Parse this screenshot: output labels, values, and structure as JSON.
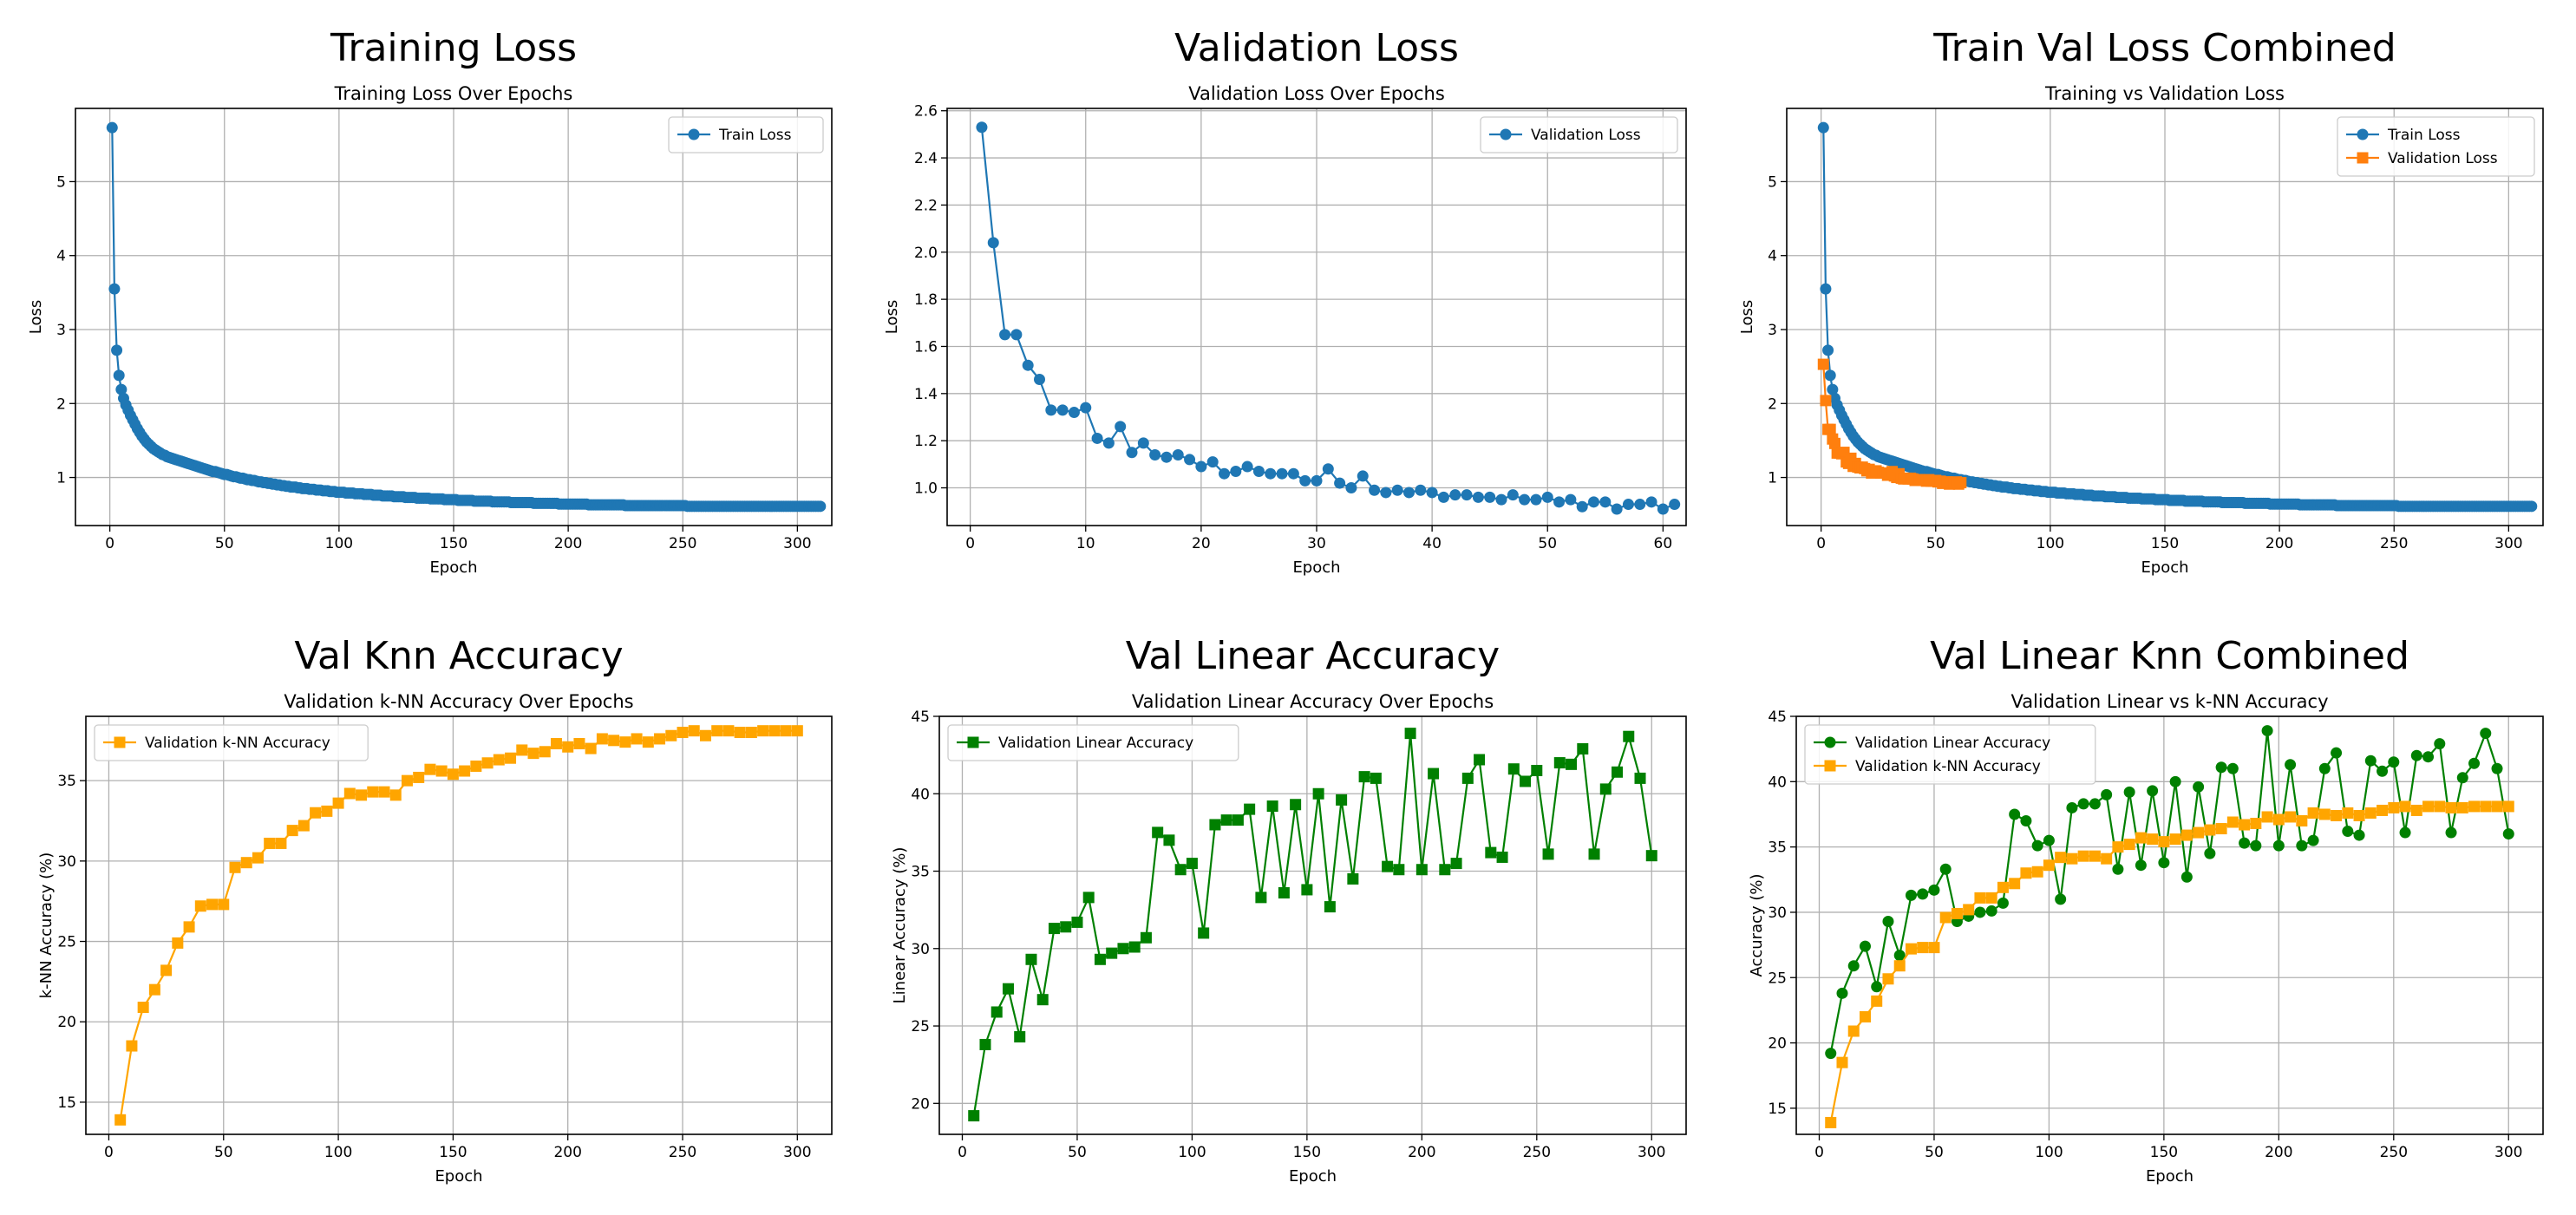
{
  "colors": {
    "train": "#1f77b4",
    "validation": "#ff7f0e",
    "knn": "#ffa500",
    "linear": "#008000",
    "grid": "#b0b0b0",
    "legend_border": "#cccccc"
  },
  "chart_data": [
    {
      "type": "line",
      "suptitle": "Training Loss",
      "title": "Training Loss Over Epochs",
      "xlabel": "Epoch",
      "ylabel": "Loss",
      "xlim": [
        -15,
        315
      ],
      "ylim": [
        0.35,
        5.99
      ],
      "xticks": [
        0,
        50,
        100,
        150,
        200,
        250,
        300
      ],
      "yticks": [
        1,
        2,
        3,
        4,
        5
      ],
      "grid": true,
      "legend": "upper right",
      "series": [
        {
          "name": "Train Loss",
          "marker": "circle",
          "color_key": "train",
          "x_start": 1,
          "x_step": 1,
          "values": [
            5.73,
            3.55,
            2.72,
            2.38,
            2.19,
            2.07,
            1.98,
            1.91,
            1.84,
            1.78,
            1.72,
            1.66,
            1.61,
            1.56,
            1.52,
            1.48,
            1.45,
            1.42,
            1.39,
            1.37,
            1.35,
            1.33,
            1.31,
            1.3,
            1.28,
            1.27,
            1.26,
            1.25,
            1.24,
            1.23,
            1.22,
            1.21,
            1.2,
            1.19,
            1.18,
            1.17,
            1.16,
            1.15,
            1.14,
            1.13,
            1.12,
            1.11,
            1.1,
            1.09,
            1.08,
            1.08,
            1.07,
            1.06,
            1.05,
            1.04,
            1.04,
            1.03,
            1.02,
            1.01,
            1.01,
            1.0,
            0.99,
            0.99,
            0.98,
            0.97,
            0.97,
            0.96,
            0.96,
            0.95,
            0.94,
            0.94,
            0.93,
            0.93,
            0.92,
            0.92,
            0.91,
            0.91,
            0.9,
            0.9,
            0.89,
            0.89,
            0.88,
            0.88,
            0.87,
            0.87,
            0.87,
            0.86,
            0.86,
            0.85,
            0.85,
            0.85,
            0.84,
            0.84,
            0.84,
            0.83,
            0.83,
            0.83,
            0.82,
            0.82,
            0.82,
            0.81,
            0.81,
            0.81,
            0.8,
            0.8,
            0.8,
            0.8,
            0.79,
            0.79,
            0.79,
            0.79,
            0.78,
            0.78,
            0.78,
            0.78,
            0.77,
            0.77,
            0.77,
            0.77,
            0.76,
            0.76,
            0.76,
            0.76,
            0.75,
            0.75,
            0.75,
            0.75,
            0.75,
            0.74,
            0.74,
            0.74,
            0.74,
            0.74,
            0.73,
            0.73,
            0.73,
            0.73,
            0.73,
            0.72,
            0.72,
            0.72,
            0.72,
            0.72,
            0.72,
            0.71,
            0.71,
            0.71,
            0.71,
            0.71,
            0.71,
            0.7,
            0.7,
            0.7,
            0.7,
            0.7,
            0.7,
            0.69,
            0.69,
            0.69,
            0.69,
            0.69,
            0.69,
            0.69,
            0.68,
            0.68,
            0.68,
            0.68,
            0.68,
            0.68,
            0.68,
            0.68,
            0.67,
            0.67,
            0.67,
            0.67,
            0.67,
            0.67,
            0.67,
            0.67,
            0.66,
            0.66,
            0.66,
            0.66,
            0.66,
            0.66,
            0.66,
            0.66,
            0.66,
            0.66,
            0.65,
            0.65,
            0.65,
            0.65,
            0.65,
            0.65,
            0.65,
            0.65,
            0.65,
            0.65,
            0.65,
            0.64,
            0.64,
            0.64,
            0.64,
            0.64,
            0.64,
            0.64,
            0.64,
            0.64,
            0.64,
            0.64,
            0.64,
            0.64,
            0.63,
            0.63,
            0.63,
            0.63,
            0.63,
            0.63,
            0.63,
            0.63,
            0.63,
            0.63,
            0.63,
            0.63,
            0.63,
            0.63,
            0.63,
            0.63,
            0.62,
            0.62,
            0.62,
            0.62,
            0.62,
            0.62,
            0.62,
            0.62,
            0.62,
            0.62,
            0.62,
            0.62,
            0.62,
            0.62,
            0.62,
            0.62,
            0.62,
            0.62,
            0.62,
            0.62,
            0.62,
            0.62,
            0.62,
            0.62,
            0.62,
            0.62,
            0.62,
            0.61,
            0.61,
            0.61,
            0.61,
            0.61,
            0.61,
            0.61,
            0.61,
            0.61,
            0.61,
            0.61,
            0.61,
            0.61,
            0.61,
            0.61,
            0.61,
            0.61,
            0.61,
            0.61,
            0.61,
            0.61,
            0.61,
            0.61,
            0.61,
            0.61,
            0.61,
            0.61,
            0.61,
            0.61,
            0.61,
            0.61,
            0.61,
            0.61,
            0.61,
            0.61,
            0.61,
            0.61,
            0.61,
            0.61,
            0.61,
            0.61,
            0.61,
            0.61,
            0.61,
            0.61,
            0.61,
            0.61,
            0.61,
            0.61,
            0.61,
            0.61,
            0.61,
            0.61,
            0.61,
            0.61,
            0.61,
            0.61,
            0.61,
            0.61
          ]
        }
      ]
    },
    {
      "type": "line",
      "suptitle": "Validation Loss",
      "title": "Validation Loss Over Epochs",
      "xlabel": "Epoch",
      "ylabel": "Loss",
      "xlim": [
        -2,
        62
      ],
      "ylim": [
        0.84,
        2.61
      ],
      "xticks": [
        0,
        10,
        20,
        30,
        40,
        50,
        60
      ],
      "yticks": [
        1.0,
        1.2,
        1.4,
        1.6,
        1.8,
        2.0,
        2.2,
        2.4,
        2.6
      ],
      "ytick_decimals": 1,
      "grid": true,
      "legend": "upper right",
      "series": [
        {
          "name": "Validation Loss",
          "marker": "circle",
          "color_key": "train",
          "x_start": 1,
          "x_step": 1,
          "values": [
            2.53,
            2.04,
            1.65,
            1.65,
            1.52,
            1.46,
            1.33,
            1.33,
            1.32,
            1.34,
            1.21,
            1.19,
            1.26,
            1.15,
            1.19,
            1.14,
            1.13,
            1.14,
            1.12,
            1.09,
            1.11,
            1.06,
            1.07,
            1.09,
            1.07,
            1.06,
            1.06,
            1.06,
            1.03,
            1.03,
            1.08,
            1.02,
            1.0,
            1.05,
            0.99,
            0.98,
            0.99,
            0.98,
            0.99,
            0.98,
            0.96,
            0.97,
            0.97,
            0.96,
            0.96,
            0.95,
            0.97,
            0.95,
            0.95,
            0.96,
            0.94,
            0.95,
            0.92,
            0.94,
            0.94,
            0.91,
            0.93,
            0.93,
            0.94,
            0.91,
            0.93
          ]
        }
      ]
    },
    {
      "type": "line",
      "suptitle": "Train Val Loss Combined",
      "title": "Training vs Validation Loss",
      "xlabel": "Epoch",
      "ylabel": "Loss",
      "xlim": [
        -15,
        315
      ],
      "ylim": [
        0.35,
        5.99
      ],
      "xticks": [
        0,
        50,
        100,
        150,
        200,
        250,
        300
      ],
      "yticks": [
        1,
        2,
        3,
        4,
        5
      ],
      "grid": true,
      "legend": "upper right",
      "series": [
        {
          "name": "Train Loss",
          "marker": "circle",
          "color_key": "train",
          "ref": "0:0"
        },
        {
          "name": "Validation Loss",
          "marker": "square",
          "color_key": "validation",
          "ref": "1:0"
        }
      ]
    },
    {
      "type": "line",
      "suptitle": "Val Knn Accuracy",
      "title": "Validation k-NN Accuracy Over Epochs",
      "xlabel": "Epoch",
      "ylabel": "k-NN Accuracy (%)",
      "xlim": [
        -10,
        315
      ],
      "ylim": [
        13.0,
        39.0
      ],
      "xticks": [
        0,
        50,
        100,
        150,
        200,
        250,
        300
      ],
      "yticks": [
        15,
        20,
        25,
        30,
        35
      ],
      "grid": true,
      "legend": "upper left",
      "series": [
        {
          "name": "Validation k-NN Accuracy",
          "marker": "square",
          "color_key": "knn",
          "x_start": 5,
          "x_step": 5,
          "values": [
            13.9,
            18.5,
            20.9,
            22.0,
            23.2,
            24.9,
            25.9,
            27.2,
            27.3,
            27.3,
            29.6,
            29.9,
            30.2,
            31.1,
            31.1,
            31.9,
            32.2,
            33.0,
            33.1,
            33.6,
            34.2,
            34.1,
            34.3,
            34.3,
            34.1,
            35.0,
            35.2,
            35.7,
            35.6,
            35.4,
            35.6,
            35.9,
            36.1,
            36.3,
            36.4,
            36.9,
            36.7,
            36.8,
            37.3,
            37.1,
            37.3,
            37.0,
            37.6,
            37.5,
            37.4,
            37.6,
            37.4,
            37.6,
            37.8,
            38.0,
            38.1,
            37.8,
            38.1,
            38.1,
            38.0,
            38.0,
            38.1,
            38.1,
            38.1,
            38.1
          ]
        }
      ]
    },
    {
      "type": "line",
      "suptitle": "Val Linear Accuracy",
      "title": "Validation Linear Accuracy Over Epochs",
      "xlabel": "Epoch",
      "ylabel": "Linear Accuracy (%)",
      "xlim": [
        -10,
        315
      ],
      "ylim": [
        18.0,
        45.0
      ],
      "xticks": [
        0,
        50,
        100,
        150,
        200,
        250,
        300
      ],
      "yticks": [
        20,
        25,
        30,
        35,
        40,
        45
      ],
      "grid": true,
      "legend": "upper left",
      "series": [
        {
          "name": "Validation Linear Accuracy",
          "marker": "square",
          "color_key": "linear",
          "x_start": 5,
          "x_step": 5,
          "values": [
            19.2,
            23.8,
            25.9,
            27.4,
            24.3,
            29.3,
            26.7,
            31.3,
            31.4,
            31.7,
            33.3,
            29.3,
            29.7,
            30.0,
            30.1,
            30.7,
            37.5,
            37.0,
            35.1,
            35.5,
            31.0,
            38.0,
            38.3,
            38.3,
            39.0,
            33.3,
            39.2,
            33.6,
            39.3,
            33.8,
            40.0,
            32.7,
            39.6,
            34.5,
            41.1,
            41.0,
            35.3,
            35.1,
            43.9,
            35.1,
            41.3,
            35.1,
            35.5,
            41.0,
            42.2,
            36.2,
            35.9,
            41.6,
            40.8,
            41.5,
            36.1,
            42.0,
            41.9,
            42.9,
            36.1,
            40.3,
            41.4,
            43.7,
            41.0,
            36.0
          ]
        }
      ]
    },
    {
      "type": "line",
      "suptitle": "Val Linear Knn Combined",
      "title": "Validation Linear vs k-NN Accuracy",
      "xlabel": "Epoch",
      "ylabel": "Accuracy (%)",
      "xlim": [
        -10,
        315
      ],
      "ylim": [
        13.0,
        45.0
      ],
      "xticks": [
        0,
        50,
        100,
        150,
        200,
        250,
        300
      ],
      "yticks": [
        15,
        20,
        25,
        30,
        35,
        40,
        45
      ],
      "grid": true,
      "legend": "upper left",
      "series": [
        {
          "name": "Validation Linear Accuracy",
          "marker": "circle",
          "color_key": "linear",
          "ref": "4:0"
        },
        {
          "name": "Validation k-NN Accuracy",
          "marker": "square",
          "color_key": "knn",
          "ref": "3:0"
        }
      ]
    }
  ]
}
